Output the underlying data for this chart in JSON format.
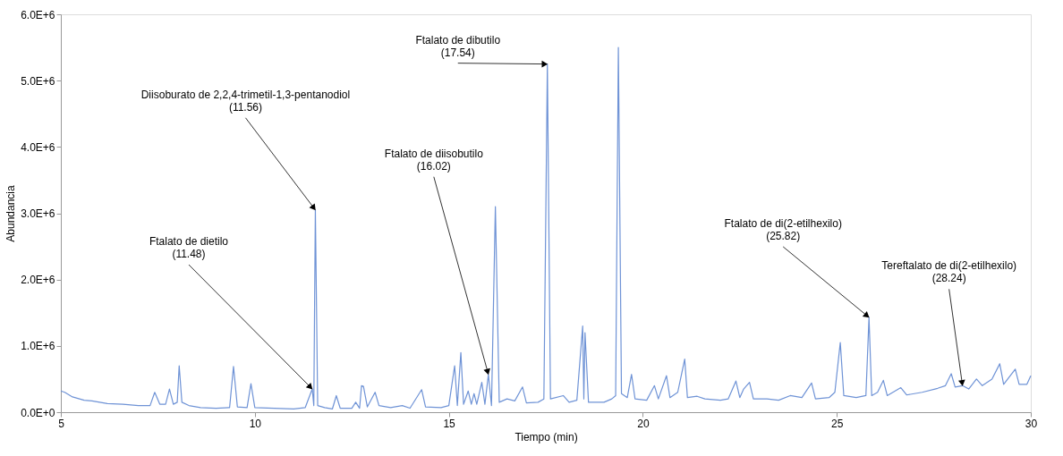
{
  "chart_data": {
    "type": "line",
    "xlabel": "Tiempo (min)",
    "ylabel": "Abundancia",
    "xlim": [
      5,
      30
    ],
    "xticks": [
      5,
      10,
      15,
      20,
      25,
      30
    ],
    "ylim": [
      0,
      6000000
    ],
    "yticks": [
      {
        "value": 0,
        "label": "0.0E+0"
      },
      {
        "value": 1000000,
        "label": "1.0E+6"
      },
      {
        "value": 2000000,
        "label": "2.0E+6"
      },
      {
        "value": 3000000,
        "label": "3.0E+6"
      },
      {
        "value": 4000000,
        "label": "4.0E+6"
      },
      {
        "value": 5000000,
        "label": "5.0E+6"
      },
      {
        "value": 6000000,
        "label": "6.0E+6"
      }
    ],
    "grid": false,
    "marker": "none",
    "line_style": "solid",
    "x": [
      5.0,
      5.1,
      5.3,
      5.6,
      5.8,
      6.2,
      6.6,
      7.0,
      7.3,
      7.42,
      7.55,
      7.7,
      7.8,
      7.9,
      8.0,
      8.05,
      8.12,
      8.3,
      8.6,
      9.0,
      9.35,
      9.45,
      9.55,
      9.8,
      9.9,
      10.0,
      10.5,
      11.0,
      11.3,
      11.48,
      11.52,
      11.56,
      11.62,
      11.8,
      12.0,
      12.1,
      12.2,
      12.5,
      12.6,
      12.7,
      12.75,
      12.8,
      12.9,
      13.1,
      13.2,
      13.5,
      13.8,
      14.0,
      14.3,
      14.4,
      14.8,
      15.0,
      15.15,
      15.22,
      15.31,
      15.38,
      15.5,
      15.58,
      15.65,
      15.72,
      15.85,
      15.93,
      16.02,
      16.1,
      16.2,
      16.3,
      16.5,
      16.7,
      16.9,
      17.0,
      17.3,
      17.45,
      17.54,
      17.62,
      17.95,
      18.1,
      18.3,
      18.45,
      18.48,
      18.51,
      18.6,
      19.0,
      19.2,
      19.3,
      19.37,
      19.45,
      19.6,
      19.71,
      19.8,
      20.1,
      20.3,
      20.4,
      20.61,
      20.7,
      20.9,
      21.08,
      21.15,
      21.4,
      21.6,
      22.0,
      22.2,
      22.4,
      22.5,
      22.6,
      22.75,
      22.85,
      23.2,
      23.5,
      23.8,
      24.1,
      24.35,
      24.45,
      24.8,
      24.95,
      25.09,
      25.18,
      25.5,
      25.75,
      25.83,
      25.9,
      26.05,
      26.2,
      26.3,
      26.65,
      26.8,
      27.2,
      27.6,
      27.8,
      27.95,
      28.05,
      28.24,
      28.4,
      28.6,
      28.75,
      29.0,
      29.2,
      29.3,
      29.6,
      29.7,
      29.9,
      30.0
    ],
    "series": [
      {
        "color": "#6f93d6",
        "values": [
          320000,
          300000,
          230000,
          180000,
          170000,
          130000,
          120000,
          100000,
          100000,
          300000,
          120000,
          120000,
          350000,
          120000,
          150000,
          700000,
          150000,
          100000,
          70000,
          60000,
          70000,
          690000,
          80000,
          70000,
          430000,
          70000,
          60000,
          50000,
          70000,
          350000,
          100000,
          3050000,
          100000,
          70000,
          50000,
          250000,
          60000,
          60000,
          150000,
          60000,
          400000,
          390000,
          80000,
          300000,
          100000,
          70000,
          100000,
          60000,
          340000,
          80000,
          70000,
          100000,
          700000,
          100000,
          900000,
          120000,
          320000,
          120000,
          280000,
          120000,
          450000,
          120000,
          570000,
          100000,
          3100000,
          150000,
          200000,
          170000,
          380000,
          140000,
          150000,
          200000,
          5250000,
          200000,
          250000,
          150000,
          180000,
          1300000,
          200000,
          1200000,
          150000,
          150000,
          200000,
          250000,
          5500000,
          280000,
          220000,
          570000,
          200000,
          180000,
          400000,
          200000,
          550000,
          220000,
          300000,
          800000,
          220000,
          240000,
          200000,
          180000,
          200000,
          470000,
          220000,
          350000,
          450000,
          200000,
          200000,
          180000,
          250000,
          220000,
          440000,
          200000,
          220000,
          300000,
          1050000,
          250000,
          220000,
          250000,
          1430000,
          250000,
          300000,
          480000,
          250000,
          370000,
          260000,
          300000,
          360000,
          400000,
          580000,
          380000,
          400000,
          350000,
          500000,
          400000,
          500000,
          730000,
          420000,
          650000,
          420000,
          420000,
          550000
        ]
      }
    ],
    "annotations": [
      {
        "text": "Ftalato de dietilo\n(11.48)",
        "x": 11.48,
        "y": 350000
      },
      {
        "text": "Diisoburato de 2,2,4-trimetil-1,3-pentanodiol\n(11.56)",
        "x": 11.56,
        "y": 3050000
      },
      {
        "text": "Ftalato de diisobutilo\n(16.02)",
        "x": 16.02,
        "y": 570000
      },
      {
        "text": "Ftalato de dibutilo\n(17.54)",
        "x": 17.54,
        "y": 5250000
      },
      {
        "text": "Ftalato de di(2-etilhexilo)\n(25.82)",
        "x": 25.83,
        "y": 1430000
      },
      {
        "text": "Tereftalato de di(2-etilhexilo)\n(28.24)",
        "x": 28.24,
        "y": 400000
      }
    ]
  }
}
